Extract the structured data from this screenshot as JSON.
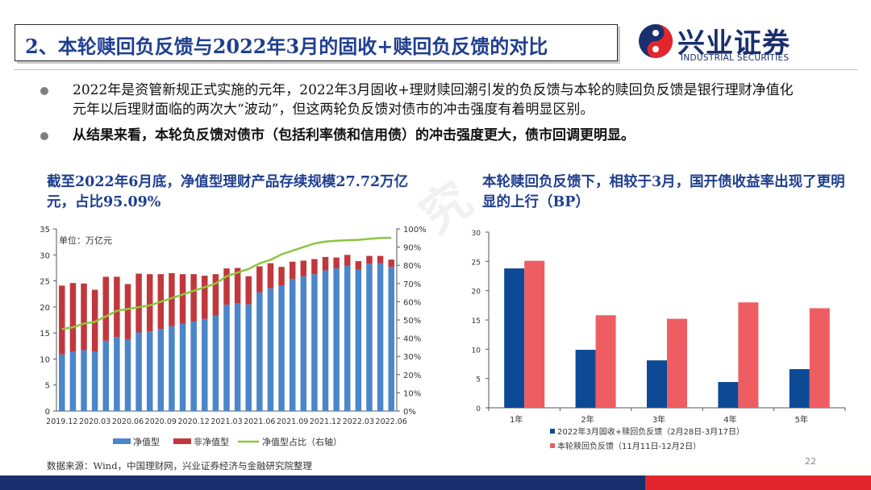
{
  "header": {
    "title": "2、本轮赎回负反馈与2022年3月的固收+赎回负反馈的对比",
    "logo_cn": "兴业证券",
    "logo_en": "INDUSTRIAL SECURITIES"
  },
  "bullets": [
    "2022年是资管新规正式实施的元年，2022年3月固收+理财赎回潮引发的负反馈与本轮的赎回负反馈是银行理财净值化元年以后理财面临的两次大“波动”，但这两轮负反馈对债市的冲击强度有着明显区别。",
    "从结果来看，本轮负反馈对债市（包括利率债和信用债）的冲击强度更大，债市回调更明显。"
  ],
  "left": {
    "headline": "截至2022年6月底，净值型理财产品存续规模27.72万亿元，占比95.09%"
  },
  "right": {
    "headline": "本轮赎回负反馈下，相较于3月，国开债收益率出现了更明显的上行（BP）"
  },
  "source": "数据来源：Wind，中国理财网，兴业证券经济与金融研究院整理",
  "page_number": "22",
  "colors": {
    "blue": "#4a86c8",
    "red": "#c0383c",
    "green": "#8dc641",
    "navy": "#0d4a96",
    "salmon": "#ee5d62",
    "title": "#1f3f8f"
  },
  "chart_data": [
    {
      "type": "bar",
      "stacked": true,
      "unit_note": "单位：万亿元",
      "x": [
        "2019.12",
        "2020.01",
        "2020.02",
        "2020.03",
        "2020.04",
        "2020.05",
        "2020.06",
        "2020.07",
        "2020.08",
        "2020.09",
        "2020.10",
        "2020.11",
        "2020.12",
        "2021.01",
        "2021.02",
        "2021.03",
        "2021.04",
        "2021.05",
        "2021.06",
        "2021.07",
        "2021.08",
        "2021.09",
        "2021.10",
        "2021.11",
        "2021.12",
        "2022.01",
        "2022.02",
        "2022.03",
        "2022.04",
        "2022.05",
        "2022.06"
      ],
      "xticks": [
        "2019.12",
        "2020.03",
        "2020.06",
        "2020.09",
        "2020.12",
        "2021.03",
        "2021.06",
        "2021.09",
        "2021.12",
        "2022.03",
        "2022.06"
      ],
      "series": [
        {
          "name": "净值型",
          "axis": "left",
          "values": [
            10.9,
            11.4,
            11.7,
            11.4,
            13.5,
            14.2,
            13.8,
            15.1,
            15.3,
            15.8,
            16.3,
            16.8,
            17.2,
            17.7,
            18.3,
            20.4,
            20.7,
            20.5,
            22.8,
            23.6,
            24.1,
            25.4,
            25.9,
            26.3,
            27.0,
            27.4,
            27.9,
            27.2,
            28.3,
            28.4,
            27.7
          ]
        },
        {
          "name": "非净值型",
          "axis": "left",
          "values": [
            13.2,
            13.2,
            12.8,
            11.9,
            12.3,
            11.6,
            10.6,
            11.3,
            11.0,
            10.5,
            10.2,
            9.5,
            9.1,
            8.3,
            8.0,
            7.0,
            6.8,
            5.4,
            5.0,
            4.8,
            3.6,
            3.3,
            3.0,
            2.9,
            2.6,
            2.1,
            2.1,
            1.6,
            1.5,
            1.4,
            1.4
          ]
        },
        {
          "name": "净值型占比（右轴）",
          "axis": "right",
          "type": "line",
          "values": [
            45,
            46,
            48,
            49,
            52,
            55,
            56,
            57,
            58,
            60,
            62,
            64,
            66,
            68,
            70,
            74,
            76,
            78,
            81,
            83,
            86,
            88,
            90,
            92,
            93,
            93.5,
            93.8,
            94,
            94.5,
            95,
            95.1
          ]
        }
      ],
      "ylim": [
        0,
        35
      ],
      "yticks": [
        0,
        5,
        10,
        15,
        20,
        25,
        30,
        35
      ],
      "y2lim": [
        0,
        100
      ],
      "y2ticks": [
        "0%",
        "10%",
        "20%",
        "30%",
        "40%",
        "50%",
        "60%",
        "70%",
        "80%",
        "90%",
        "100%"
      ],
      "legend_position": "bottom"
    },
    {
      "type": "bar",
      "categories": [
        "1年",
        "2年",
        "3年",
        "4年",
        "5年"
      ],
      "series": [
        {
          "name": "2022年3月固收+赎回负反馈（2月28日-3月17日）",
          "values": [
            23.8,
            9.9,
            8.1,
            4.4,
            6.6
          ]
        },
        {
          "name": "本轮赎回负反馈（11月11日-12月2日）",
          "values": [
            25.1,
            15.8,
            15.2,
            18.0,
            17.0
          ]
        }
      ],
      "ylim": [
        0,
        30
      ],
      "yticks": [
        0,
        5,
        10,
        15,
        20,
        25,
        30
      ],
      "legend_position": "bottom"
    }
  ]
}
